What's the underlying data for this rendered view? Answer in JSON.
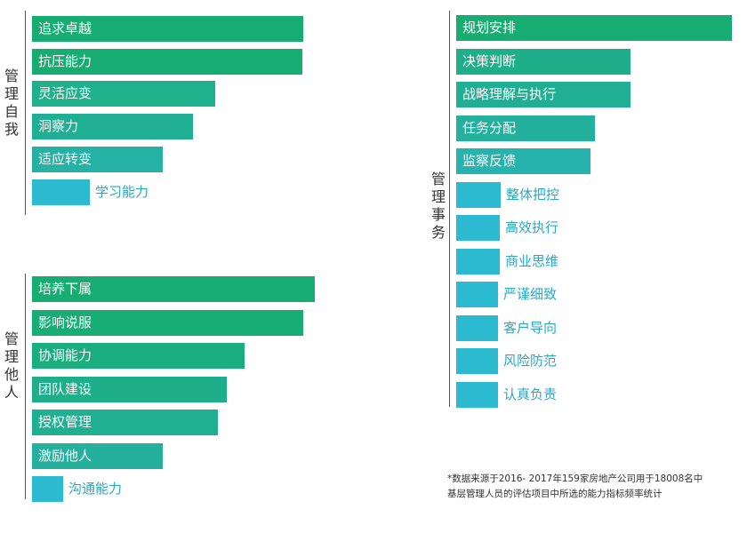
{
  "chart_data": [
    {
      "type": "bar",
      "orientation": "horizontal",
      "group": "管理自我",
      "categories": [
        "追求卓越",
        "抗压能力",
        "灵活应变",
        "洞察力",
        "适应转变",
        "学习能力"
      ],
      "values": [
        305,
        304,
        206,
        181,
        147,
        65
      ],
      "colors": [
        "#17ad72",
        "#17ad72",
        "#1fb08c",
        "#21af93",
        "#26b1a5",
        "#2cbad1"
      ]
    },
    {
      "type": "bar",
      "orientation": "horizontal",
      "group": "管理他人",
      "categories": [
        "培养下属",
        "影响说服",
        "协调能力",
        "团队建设",
        "授权管理",
        "激励他人",
        "沟通能力"
      ],
      "values": [
        318,
        305,
        239,
        219,
        209,
        147,
        35
      ],
      "colors": [
        "#17ad72",
        "#18ad75",
        "#1aad7e",
        "#1fae8a",
        "#21af91",
        "#24b09d",
        "#2cbad1"
      ]
    },
    {
      "type": "bar",
      "orientation": "horizontal",
      "group": "管理事务",
      "categories": [
        "规划安排",
        "决策判断",
        "战略理解与执行",
        "任务分配",
        "监察反馈",
        "整体把控",
        "高效执行",
        "商业思维",
        "严谨细致",
        "客户导向",
        "风险防范",
        "认真负责"
      ],
      "values": [
        310,
        196,
        196,
        156,
        151,
        50,
        49,
        49,
        47,
        47,
        47,
        47
      ],
      "colors": [
        "#17ad72",
        "#1fae8a",
        "#21af93",
        "#23b09c",
        "#27b3ad",
        "#2cbad1",
        "#2cbad1",
        "#2cbad1",
        "#2cbad1",
        "#2cbad1",
        "#2cbad1",
        "#2cbad1"
      ]
    }
  ],
  "footnote": {
    "line1": "*数据来源于2016- 2017年159家房地产公司用于18008名中",
    "line2": "基层管理人员的评估项目中所选的能力指标频率统计"
  }
}
